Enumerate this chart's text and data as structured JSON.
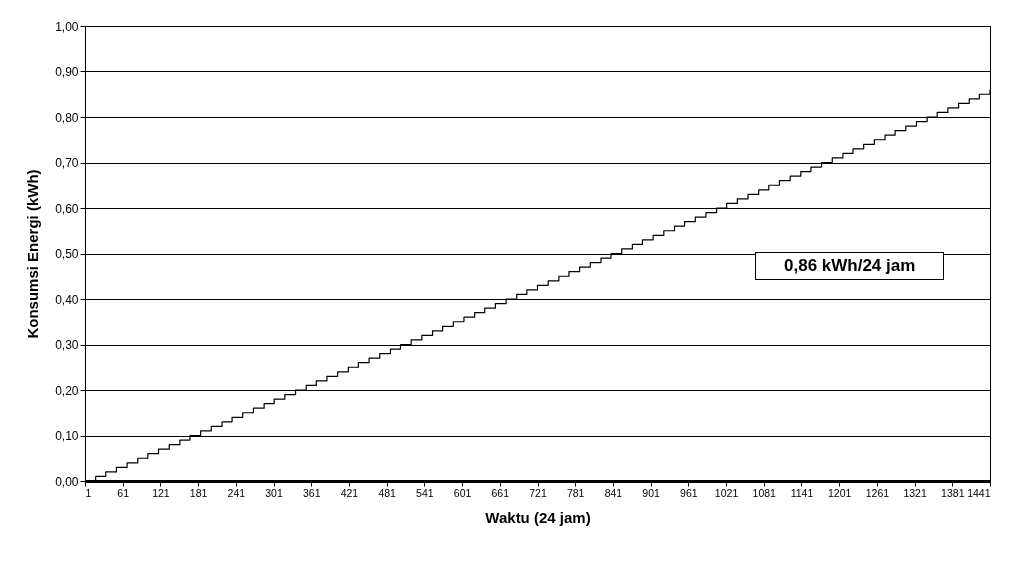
{
  "chart_data": {
    "type": "step",
    "xlabel": "Waktu (24 jam)",
    "ylabel": "Konsumsi Energi (kWh)",
    "x": [
      1,
      18,
      34,
      51,
      68,
      85,
      101,
      118,
      135,
      152,
      168,
      185,
      202,
      219,
      235,
      252,
      269,
      286,
      302,
      319,
      336,
      353,
      369,
      386,
      403,
      420,
      436,
      453,
      470,
      487,
      503,
      520,
      537,
      554,
      570,
      587,
      604,
      621,
      637,
      654,
      671,
      688,
      704,
      721,
      738,
      755,
      771,
      788,
      805,
      822,
      838,
      855,
      872,
      888,
      905,
      922,
      939,
      955,
      972,
      989,
      1006,
      1022,
      1039,
      1056,
      1073,
      1089,
      1106,
      1123,
      1140,
      1156,
      1173,
      1190,
      1207,
      1223,
      1240,
      1257,
      1274,
      1290,
      1307,
      1324,
      1341,
      1357,
      1374,
      1391,
      1408,
      1424,
      1441
    ],
    "series": [
      {
        "color": "#000000",
        "values": [
          0,
          0.01,
          0.02,
          0.03,
          0.04,
          0.05,
          0.06,
          0.07,
          0.08,
          0.09,
          0.1,
          0.11,
          0.12,
          0.13,
          0.14,
          0.15,
          0.16,
          0.17,
          0.18,
          0.19,
          0.2,
          0.21,
          0.22,
          0.23,
          0.24,
          0.25,
          0.26,
          0.27,
          0.28,
          0.29,
          0.3,
          0.31,
          0.32,
          0.33,
          0.34,
          0.35,
          0.36,
          0.37,
          0.38,
          0.39,
          0.4,
          0.41,
          0.42,
          0.43,
          0.44,
          0.45,
          0.46,
          0.47,
          0.48,
          0.49,
          0.5,
          0.51,
          0.52,
          0.53,
          0.54,
          0.55,
          0.56,
          0.57,
          0.58,
          0.59,
          0.6,
          0.61,
          0.62,
          0.63,
          0.64,
          0.65,
          0.66,
          0.67,
          0.68,
          0.69,
          0.7,
          0.71,
          0.72,
          0.73,
          0.74,
          0.75,
          0.76,
          0.77,
          0.78,
          0.79,
          0.8,
          0.81,
          0.82,
          0.83,
          0.84,
          0.85,
          0.86
        ]
      }
    ],
    "xlim": [
      1,
      1441
    ],
    "xticks": [
      1,
      61,
      121,
      181,
      241,
      301,
      361,
      421,
      481,
      541,
      601,
      661,
      721,
      781,
      841,
      901,
      961,
      1021,
      1081,
      1141,
      1201,
      1261,
      1321,
      1381,
      1441
    ],
    "ylim": [
      0,
      1
    ],
    "yticks": [
      {
        "value": 0,
        "label": "0,00"
      },
      {
        "value": 0.1,
        "label": "0,10"
      },
      {
        "value": 0.2,
        "label": "0,20"
      },
      {
        "value": 0.3,
        "label": "0,30"
      },
      {
        "value": 0.4,
        "label": "0,40"
      },
      {
        "value": 0.5,
        "label": "0,50"
      },
      {
        "value": 0.6,
        "label": "0,60"
      },
      {
        "value": 0.7,
        "label": "0,70"
      },
      {
        "value": 0.8,
        "label": "0,80"
      },
      {
        "value": 0.9,
        "label": "0,90"
      },
      {
        "value": 1,
        "label": "1,00"
      }
    ],
    "grid": "y",
    "annotations": [
      "0,86 kWh/24 jam"
    ]
  }
}
